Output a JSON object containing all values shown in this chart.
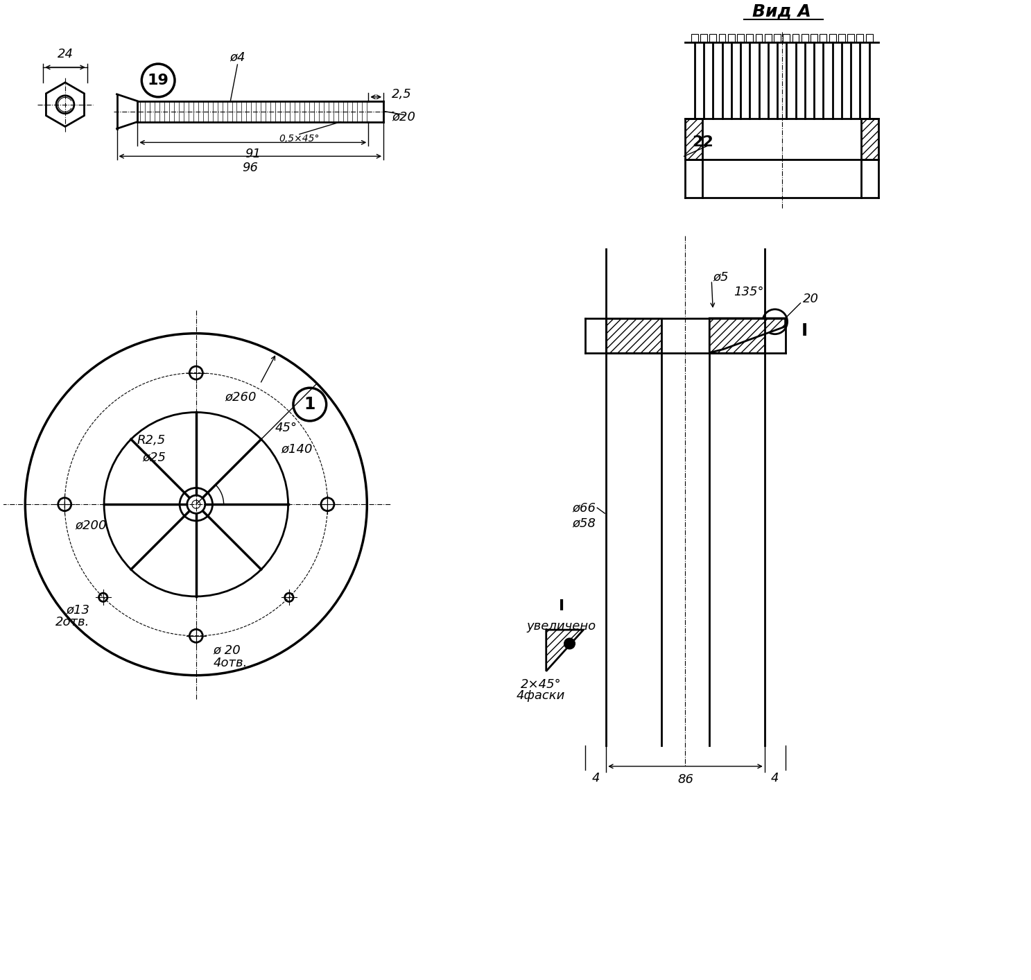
{
  "bg_color": "#ffffff",
  "line_color": "#000000",
  "fig_width": 14.87,
  "fig_height": 14.13,
  "title_text": "Вид А",
  "part19_label": "19",
  "part1_label": "1",
  "part22_label": "22",
  "dim_24": "24",
  "dim_phi4": "ø4",
  "dim_2_5": "2,5",
  "dim_phi20_top": "ø20",
  "dim_chamfer": "0,5×45°",
  "dim_91": "91",
  "dim_96": "96",
  "dim_R25": "R2,5",
  "dim_phi25": "ø25",
  "dim_phi260": "ø260",
  "dim_phi140": "ø140",
  "dim_45deg": "45°",
  "dim_phi200": "ø200",
  "dim_phi13": "ø13",
  "dim_2otv": "2отв.",
  "dim_phi20_4": "ø 20",
  "dim_4otv": "4отв.",
  "dim_phi5": "ø5",
  "dim_135deg": "135°",
  "dim_phi66": "ø66",
  "dim_phi58": "ø58",
  "dim_chamfer2": "2×45°",
  "dim_4fasks": "4фаски",
  "dim_4": "4",
  "dim_86": "86",
  "dim_20_right": "20",
  "label_I": "I",
  "label_uv": "увеличено"
}
